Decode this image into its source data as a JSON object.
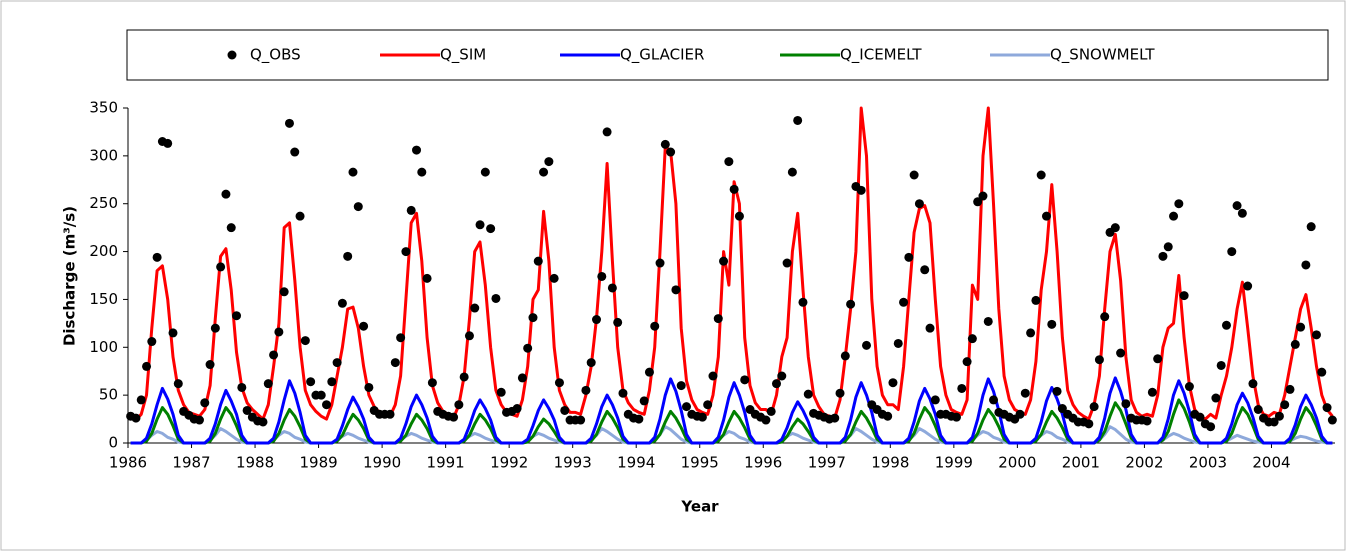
{
  "chart_data": {
    "type": "line",
    "y_label": "Discharge (m³/s)",
    "x_label": "Year",
    "ylim": [
      0,
      350
    ],
    "yticks": [
      0,
      50,
      100,
      150,
      200,
      250,
      300,
      350
    ],
    "categories": [
      "1986",
      null,
      null,
      null,
      null,
      null,
      null,
      null,
      null,
      null,
      null,
      null,
      "1987",
      null,
      null,
      null,
      null,
      null,
      null,
      null,
      null,
      null,
      null,
      null,
      "1988",
      null,
      null,
      null,
      null,
      null,
      null,
      null,
      null,
      null,
      null,
      null,
      "1989",
      null,
      null,
      null,
      null,
      null,
      null,
      null,
      null,
      null,
      null,
      null,
      "1990",
      null,
      null,
      null,
      null,
      null,
      null,
      null,
      null,
      null,
      null,
      null,
      "1991",
      null,
      null,
      null,
      null,
      null,
      null,
      null,
      null,
      null,
      null,
      null,
      "1992",
      null,
      null,
      null,
      null,
      null,
      null,
      null,
      null,
      null,
      null,
      null,
      "1993",
      null,
      null,
      null,
      null,
      null,
      null,
      null,
      null,
      null,
      null,
      null,
      "1994",
      null,
      null,
      null,
      null,
      null,
      null,
      null,
      null,
      null,
      null,
      null,
      "1995",
      null,
      null,
      null,
      null,
      null,
      null,
      null,
      null,
      null,
      null,
      null,
      "1996",
      null,
      null,
      null,
      null,
      null,
      null,
      null,
      null,
      null,
      null,
      null,
      "1997",
      null,
      null,
      null,
      null,
      null,
      null,
      null,
      null,
      null,
      null,
      null,
      "1998",
      null,
      null,
      null,
      null,
      null,
      null,
      null,
      null,
      null,
      null,
      null,
      "1999",
      null,
      null,
      null,
      null,
      null,
      null,
      null,
      null,
      null,
      null,
      null,
      "2000",
      null,
      null,
      null,
      null,
      null,
      null,
      null,
      null,
      null,
      null,
      null,
      "2001",
      null,
      null,
      null,
      null,
      null,
      null,
      null,
      null,
      null,
      null,
      null,
      "2002",
      null,
      null,
      null,
      null,
      null,
      null,
      null,
      null,
      null,
      null,
      null,
      "2003",
      null,
      null,
      null,
      null,
      null,
      null,
      null,
      null,
      null,
      null,
      null,
      "2004",
      null,
      null,
      null,
      null,
      null,
      null,
      null,
      null,
      null,
      null,
      null
    ],
    "series": [
      {
        "name": "Q_OBS",
        "style": "dots",
        "color": "#000000",
        "values": [
          28,
          26,
          45,
          80,
          106,
          194,
          315,
          313,
          115,
          62,
          33,
          29,
          25,
          24,
          42,
          82,
          120,
          184,
          260,
          225,
          133,
          58,
          34,
          27,
          23,
          22,
          62,
          92,
          116,
          158,
          334,
          304,
          237,
          107,
          64,
          50,
          50,
          40,
          64,
          84,
          146,
          195,
          283,
          247,
          122,
          58,
          34,
          30,
          30,
          30,
          84,
          110,
          200,
          243,
          306,
          283,
          172,
          63,
          33,
          30,
          28,
          27,
          40,
          69,
          112,
          141,
          228,
          283,
          224,
          151,
          53,
          32,
          33,
          36,
          68,
          99,
          131,
          190,
          283,
          294,
          172,
          63,
          34,
          24,
          24,
          24,
          55,
          84,
          129,
          174,
          325,
          162,
          126,
          52,
          30,
          26,
          25,
          44,
          74,
          122,
          188,
          312,
          304,
          160,
          60,
          38,
          30,
          28,
          27,
          40,
          70,
          130,
          190,
          294,
          265,
          237,
          66,
          35,
          30,
          27,
          24,
          33,
          62,
          70,
          188,
          283,
          337,
          147,
          51,
          31,
          29,
          27,
          25,
          26,
          52,
          91,
          145,
          268,
          264,
          102,
          40,
          35,
          30,
          28,
          63,
          104,
          147,
          194,
          280,
          250,
          181,
          120,
          45,
          30,
          30,
          28,
          27,
          57,
          85,
          109,
          252,
          258,
          127,
          45,
          32,
          30,
          27,
          25,
          30,
          52,
          115,
          149,
          280,
          237,
          124,
          54,
          36,
          30,
          26,
          22,
          22,
          20,
          38,
          87,
          132,
          220,
          225,
          94,
          41,
          26,
          24,
          24,
          23,
          53,
          88,
          195,
          205,
          237,
          250,
          154,
          59,
          30,
          27,
          20,
          17,
          47,
          81,
          123,
          200,
          248,
          240,
          164,
          62,
          35,
          26,
          22,
          22,
          28,
          40,
          56,
          103,
          121,
          186,
          226,
          113,
          74,
          37,
          24
        ]
      },
      {
        "name": "Q_SIM",
        "style": "line",
        "color": "#ff0000",
        "values": [
          28,
          24,
          30,
          50,
          120,
          180,
          185,
          150,
          90,
          55,
          40,
          32,
          30,
          28,
          35,
          60,
          130,
          195,
          203,
          160,
          95,
          58,
          42,
          35,
          30,
          25,
          40,
          80,
          125,
          225,
          230,
          170,
          100,
          55,
          40,
          33,
          28,
          25,
          40,
          70,
          100,
          140,
          142,
          120,
          80,
          50,
          38,
          32,
          30,
          28,
          40,
          70,
          150,
          230,
          240,
          190,
          110,
          60,
          42,
          33,
          30,
          26,
          40,
          70,
          130,
          200,
          210,
          165,
          100,
          55,
          40,
          32,
          30,
          28,
          45,
          80,
          150,
          160,
          242,
          190,
          100,
          55,
          40,
          32,
          32,
          30,
          50,
          80,
          130,
          200,
          292,
          190,
          100,
          55,
          42,
          35,
          32,
          30,
          55,
          100,
          200,
          310,
          305,
          250,
          120,
          65,
          45,
          35,
          32,
          30,
          50,
          90,
          200,
          165,
          273,
          250,
          110,
          60,
          42,
          35,
          35,
          30,
          50,
          90,
          110,
          200,
          240,
          160,
          90,
          50,
          38,
          30,
          28,
          26,
          45,
          90,
          140,
          200,
          350,
          300,
          150,
          80,
          50,
          40,
          40,
          35,
          80,
          150,
          220,
          245,
          248,
          230,
          150,
          80,
          50,
          35,
          32,
          30,
          45,
          165,
          150,
          300,
          350,
          250,
          140,
          70,
          45,
          35,
          32,
          30,
          45,
          85,
          160,
          200,
          270,
          200,
          110,
          55,
          40,
          32,
          28,
          25,
          40,
          70,
          140,
          200,
          218,
          170,
          90,
          45,
          32,
          28,
          30,
          28,
          50,
          100,
          120,
          125,
          175,
          110,
          60,
          35,
          28,
          25,
          30,
          26,
          50,
          70,
          100,
          140,
          168,
          120,
          70,
          40,
          30,
          28,
          32,
          30,
          50,
          80,
          110,
          140,
          155,
          120,
          80,
          50,
          35,
          28
        ]
      },
      {
        "name": "Q_GLACIER",
        "style": "line",
        "color": "#0000ff",
        "values": [
          0,
          0,
          0,
          5,
          20,
          40,
          57,
          46,
          30,
          8,
          0,
          0,
          0,
          0,
          0,
          5,
          20,
          40,
          55,
          44,
          30,
          8,
          0,
          0,
          0,
          0,
          0,
          5,
          22,
          45,
          65,
          52,
          32,
          8,
          0,
          0,
          0,
          0,
          0,
          4,
          18,
          35,
          48,
          38,
          25,
          6,
          0,
          0,
          0,
          0,
          0,
          5,
          20,
          38,
          50,
          40,
          26,
          7,
          0,
          0,
          0,
          0,
          0,
          4,
          18,
          34,
          45,
          36,
          24,
          6,
          0,
          0,
          0,
          0,
          0,
          4,
          18,
          34,
          45,
          36,
          24,
          6,
          0,
          0,
          0,
          0,
          0,
          5,
          20,
          38,
          50,
          40,
          26,
          7,
          0,
          0,
          0,
          0,
          0,
          6,
          25,
          50,
          67,
          54,
          34,
          9,
          0,
          0,
          0,
          0,
          0,
          6,
          24,
          48,
          63,
          50,
          32,
          8,
          0,
          0,
          0,
          0,
          0,
          4,
          16,
          32,
          43,
          34,
          22,
          6,
          0,
          0,
          0,
          0,
          0,
          6,
          24,
          48,
          63,
          50,
          32,
          8,
          0,
          0,
          0,
          0,
          0,
          5,
          22,
          44,
          57,
          46,
          30,
          8,
          0,
          0,
          0,
          0,
          0,
          6,
          25,
          50,
          67,
          54,
          34,
          9,
          0,
          0,
          0,
          0,
          0,
          5,
          22,
          44,
          58,
          46,
          30,
          8,
          0,
          0,
          0,
          0,
          0,
          6,
          26,
          52,
          68,
          54,
          35,
          9,
          0,
          0,
          0,
          0,
          0,
          6,
          25,
          50,
          65,
          52,
          33,
          9,
          0,
          0,
          0,
          0,
          0,
          5,
          20,
          40,
          52,
          42,
          27,
          7,
          0,
          0,
          0,
          0,
          0,
          5,
          19,
          38,
          50,
          40,
          26,
          7,
          0,
          0
        ]
      },
      {
        "name": "Q_ICEMELT",
        "style": "line",
        "color": "#008000",
        "values": [
          0,
          0,
          0,
          2,
          10,
          25,
          37,
          30,
          18,
          4,
          0,
          0,
          0,
          0,
          0,
          2,
          10,
          25,
          37,
          30,
          18,
          4,
          0,
          0,
          0,
          0,
          0,
          2,
          10,
          24,
          35,
          28,
          17,
          4,
          0,
          0,
          0,
          0,
          0,
          2,
          8,
          20,
          30,
          24,
          15,
          3,
          0,
          0,
          0,
          0,
          0,
          2,
          8,
          20,
          30,
          24,
          15,
          3,
          0,
          0,
          0,
          0,
          0,
          2,
          8,
          20,
          30,
          24,
          15,
          3,
          0,
          0,
          0,
          0,
          0,
          1,
          7,
          17,
          25,
          20,
          12,
          3,
          0,
          0,
          0,
          0,
          0,
          2,
          9,
          22,
          33,
          26,
          16,
          4,
          0,
          0,
          0,
          0,
          0,
          2,
          9,
          22,
          33,
          26,
          16,
          4,
          0,
          0,
          0,
          0,
          0,
          2,
          9,
          22,
          33,
          26,
          16,
          4,
          0,
          0,
          0,
          0,
          0,
          1,
          7,
          17,
          25,
          20,
          12,
          3,
          0,
          0,
          0,
          0,
          0,
          2,
          9,
          22,
          33,
          26,
          16,
          4,
          0,
          0,
          0,
          0,
          0,
          2,
          10,
          25,
          37,
          30,
          18,
          4,
          0,
          0,
          0,
          0,
          0,
          2,
          10,
          24,
          35,
          28,
          17,
          4,
          0,
          0,
          0,
          0,
          0,
          2,
          9,
          22,
          33,
          26,
          16,
          4,
          0,
          0,
          0,
          0,
          0,
          3,
          12,
          28,
          42,
          34,
          20,
          5,
          0,
          0,
          0,
          0,
          0,
          3,
          12,
          30,
          45,
          36,
          22,
          5,
          0,
          0,
          0,
          0,
          0,
          2,
          10,
          25,
          37,
          30,
          18,
          4,
          0,
          0,
          0,
          0,
          0,
          2,
          10,
          25,
          37,
          30,
          18,
          4,
          0,
          0
        ]
      },
      {
        "name": "Q_SNOWMELT",
        "style": "line",
        "color": "#8ea9db",
        "values": [
          0,
          0,
          0,
          3,
          8,
          12,
          10,
          6,
          4,
          1,
          0,
          0,
          0,
          0,
          0,
          3,
          8,
          15,
          12,
          8,
          4,
          1,
          0,
          0,
          0,
          0,
          0,
          3,
          8,
          12,
          10,
          6,
          4,
          1,
          0,
          0,
          0,
          0,
          0,
          3,
          7,
          10,
          8,
          5,
          3,
          1,
          0,
          0,
          0,
          0,
          0,
          3,
          7,
          10,
          8,
          5,
          3,
          1,
          0,
          0,
          0,
          0,
          0,
          3,
          7,
          10,
          8,
          5,
          3,
          1,
          0,
          0,
          0,
          0,
          0,
          3,
          7,
          10,
          8,
          5,
          3,
          1,
          0,
          0,
          0,
          0,
          0,
          3,
          8,
          15,
          12,
          8,
          4,
          1,
          0,
          0,
          0,
          0,
          0,
          3,
          9,
          17,
          14,
          9,
          4,
          1,
          0,
          0,
          0,
          0,
          0,
          3,
          8,
          12,
          10,
          6,
          4,
          1,
          0,
          0,
          0,
          0,
          0,
          3,
          7,
          10,
          8,
          5,
          3,
          1,
          0,
          0,
          0,
          0,
          0,
          3,
          8,
          15,
          12,
          8,
          4,
          1,
          0,
          0,
          0,
          0,
          0,
          3,
          8,
          15,
          12,
          8,
          4,
          1,
          0,
          0,
          0,
          0,
          0,
          3,
          8,
          12,
          10,
          6,
          4,
          1,
          0,
          0,
          0,
          0,
          0,
          3,
          8,
          12,
          10,
          6,
          4,
          1,
          0,
          0,
          0,
          0,
          0,
          3,
          9,
          17,
          14,
          9,
          4,
          1,
          0,
          0,
          0,
          0,
          0,
          3,
          7,
          10,
          8,
          5,
          3,
          1,
          0,
          0,
          0,
          0,
          0,
          2,
          5,
          8,
          6,
          4,
          2,
          1,
          0,
          0,
          0,
          0,
          0,
          2,
          5,
          7,
          6,
          4,
          2,
          1,
          0,
          0
        ]
      }
    ]
  }
}
